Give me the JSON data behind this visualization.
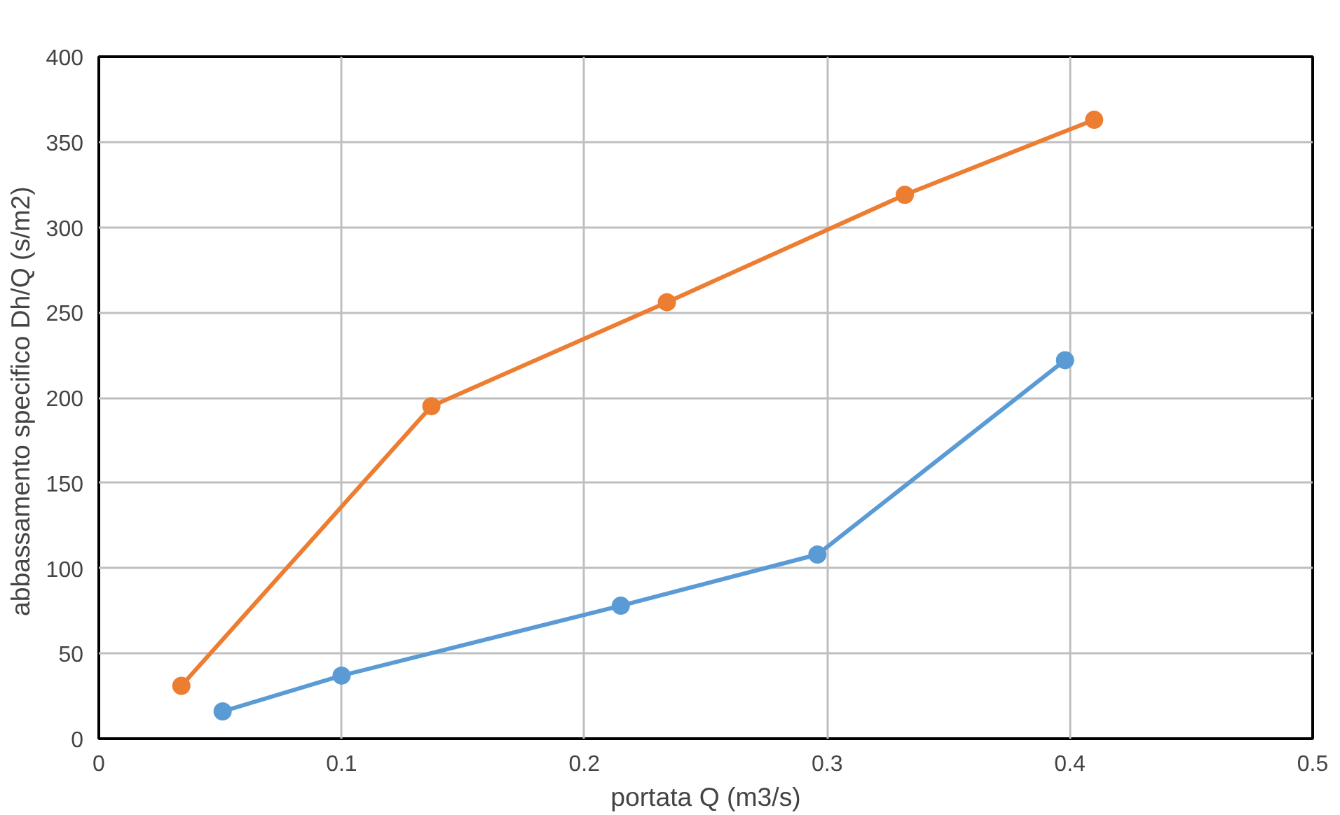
{
  "chart_data": {
    "type": "line",
    "xlabel": "portata Q (m3/s)",
    "ylabel": "abbassamento specifico Dh/Q  (s/m2)",
    "series": [
      {
        "color": "#5b9bd5",
        "x": [
          0.051,
          0.1,
          0.215,
          0.296,
          0.398
        ],
        "values": [
          16,
          37,
          78,
          108,
          222
        ]
      },
      {
        "color": "#ed7d31",
        "x": [
          0.034,
          0.137,
          0.234,
          0.332,
          0.41
        ],
        "values": [
          31,
          195,
          256,
          319,
          363
        ]
      }
    ],
    "xlim": [
      0,
      0.5
    ],
    "xticks": [
      0,
      0.1,
      0.2,
      0.3,
      0.4,
      0.5
    ],
    "ylim": [
      0,
      400
    ],
    "yticks": [
      0,
      50,
      100,
      150,
      200,
      250,
      300,
      350,
      400
    ],
    "grid": true,
    "marker": "circle",
    "line_style": "solid"
  }
}
